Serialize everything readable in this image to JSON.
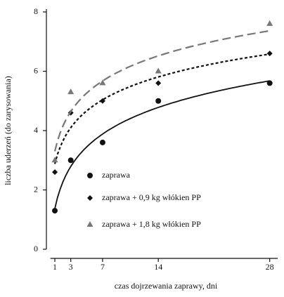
{
  "chart_data": {
    "type": "scatter",
    "x_label": "czas dojrzewania zaprawy, dni",
    "y_label": "liczba uderzeń (do zarysowania)",
    "x": [
      1,
      3,
      7,
      14,
      28
    ],
    "xlim": [
      0,
      29
    ],
    "xticks": [
      1,
      3,
      7,
      14,
      28
    ],
    "ylim": [
      0,
      8
    ],
    "yticks": [
      0,
      2,
      4,
      6,
      8
    ],
    "series": [
      {
        "name": "zaprawa",
        "color": "#111111",
        "marker": "circle",
        "line": "solid",
        "values": [
          1.3,
          3.0,
          3.6,
          5.0,
          5.6
        ]
      },
      {
        "name": "zaprawa + 0,9 kg włókien PP",
        "color": "#111111",
        "marker": "diamond",
        "line": "short-dash",
        "values": [
          2.6,
          4.6,
          5.0,
          5.6,
          6.6
        ]
      },
      {
        "name": "zaprawa + 1,8 kg włókien PP",
        "color": "#777777",
        "marker": "triangle",
        "line": "long-dash",
        "values": [
          3.0,
          5.3,
          5.6,
          6.0,
          7.6
        ]
      }
    ]
  }
}
